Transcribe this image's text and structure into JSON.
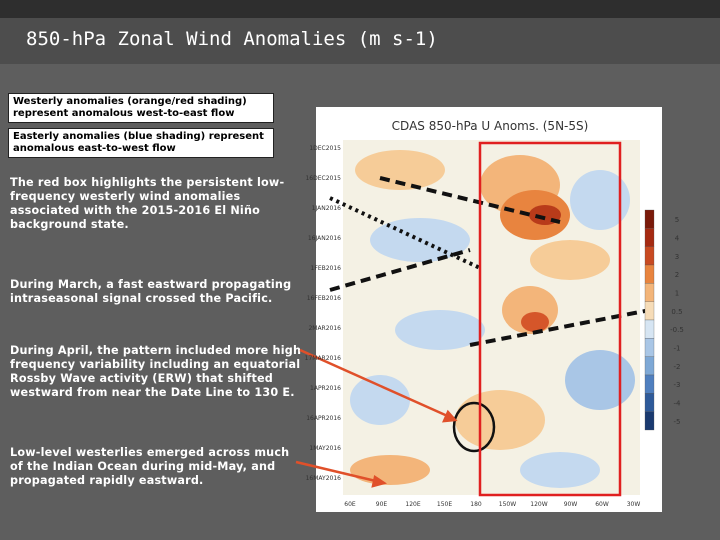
{
  "header": {
    "title": "850-hPa Zonal Wind Anomalies (m s-1)"
  },
  "callouts": [
    "Westerly anomalies (orange/red shading) represent anomalous west-to-east flow",
    "Easterly anomalies (blue shading) represent anomalous east-to-west flow"
  ],
  "notes": [
    "The red box highlights the persistent low-frequency westerly wind anomalies associated with the 2015-2016 El Niño background state.",
    "During March, a fast eastward propagating intraseasonal signal crossed the Pacific.",
    "During April, the pattern included more high frequency variability including an equatorial Rossby Wave activity (ERW) that shifted westward from near the Date Line to 130 E.",
    "Low-level westerlies emerged across much of the Indian Ocean during mid-May, and propagated rapidly eastward."
  ],
  "figure": {
    "title": "CDAS 850-hPa U Anoms. (5N-5S)",
    "y_labels": [
      "1DEC2015",
      "16DEC2015",
      "1JAN2016",
      "16JAN2016",
      "1FEB2016",
      "16FEB2016",
      "2MAR2016",
      "17MAR2016",
      "1APR2016",
      "16APR2016",
      "1MAY2016",
      "16MAY2016"
    ],
    "x_labels": [
      "60E",
      "90E",
      "120E",
      "150E",
      "180",
      "150W",
      "120W",
      "90W",
      "60W",
      "30W"
    ],
    "colorbar_labels": [
      "5",
      "4",
      "3",
      "2",
      "1",
      "0.5",
      "-0.5",
      "-1",
      "-2",
      "-3",
      "-4",
      "-5"
    ]
  }
}
